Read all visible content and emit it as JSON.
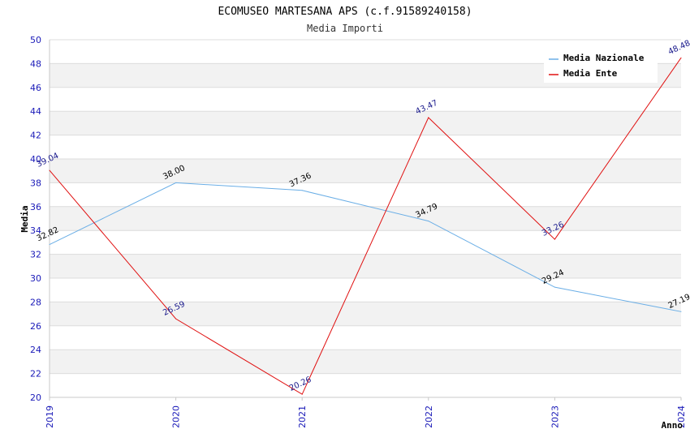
{
  "chart_data": {
    "type": "line",
    "title": "ECOMUSEO MARTESANA APS (c.f.91589240158)",
    "subtitle": "Media Importi",
    "xlabel": "Anno",
    "ylabel": "Media",
    "ylim": [
      20,
      50
    ],
    "yticks": [
      "20",
      "22",
      "24",
      "26",
      "28",
      "30",
      "32",
      "34",
      "36",
      "38",
      "40",
      "42",
      "44",
      "46",
      "48",
      "50"
    ],
    "categories": [
      "2019",
      "2020",
      "2021",
      "2022",
      "2023",
      "2024"
    ],
    "series": [
      {
        "name": "Media Nazionale",
        "color": "#6aaee6",
        "label_color": "#000000",
        "values": [
          32.82,
          38.0,
          37.36,
          34.79,
          29.24,
          27.19
        ],
        "labels": [
          "32.82",
          "38.00",
          "37.36",
          "34.79",
          "29.24",
          "27.19"
        ]
      },
      {
        "name": "Media Ente",
        "color": "#e01010",
        "label_color": "#1a1a8c",
        "values": [
          39.04,
          26.59,
          20.26,
          43.47,
          33.26,
          48.48
        ],
        "labels": [
          "39.04",
          "26.59",
          "20.26",
          "43.47",
          "33.26",
          "48.48"
        ]
      }
    ],
    "legend_position": "top-right",
    "grid": true
  }
}
